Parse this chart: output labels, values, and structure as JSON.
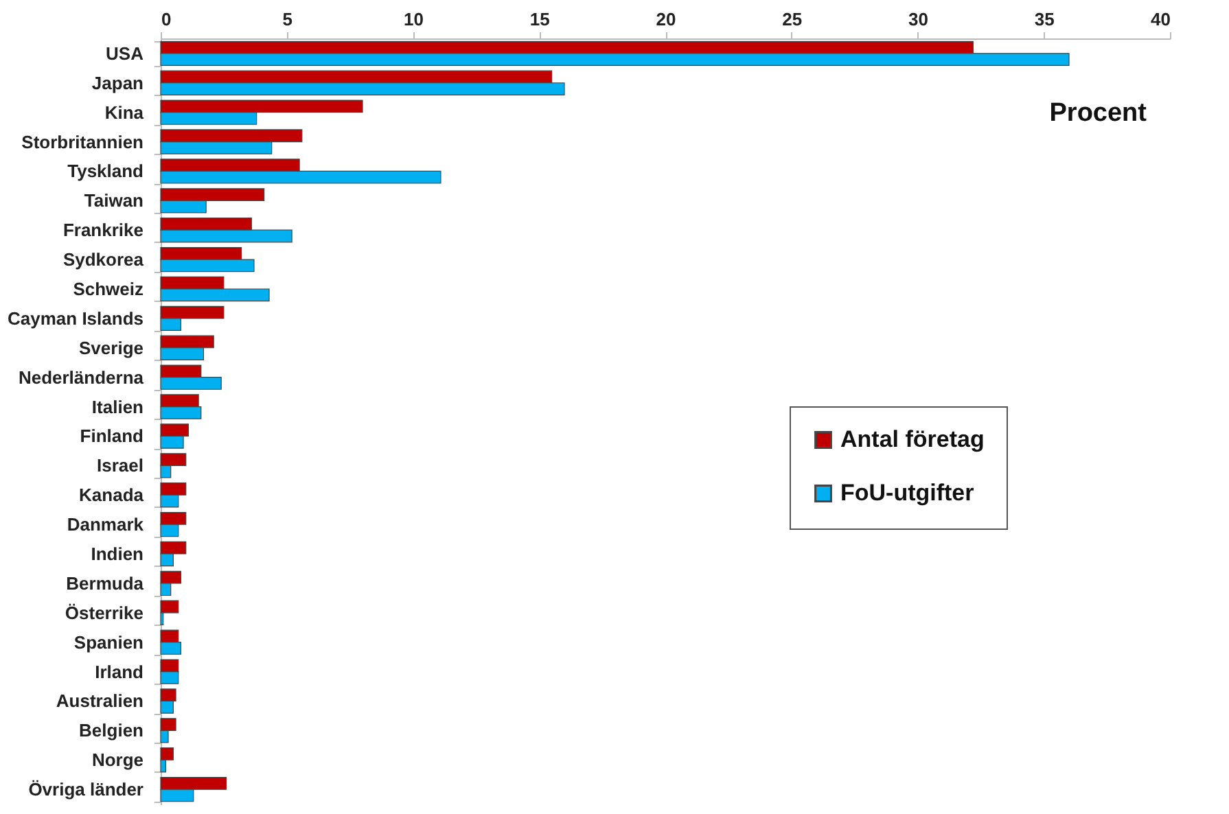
{
  "chart_data": {
    "type": "bar",
    "orientation": "horizontal",
    "categories": [
      "USA",
      "Japan",
      "Kina",
      "Storbritannien",
      "Tyskland",
      "Taiwan",
      "Frankrike",
      "Sydkorea",
      "Schweiz",
      "Cayman Islands",
      "Sverige",
      "Nederländerna",
      "Italien",
      "Finland",
      "Israel",
      "Kanada",
      "Danmark",
      "Indien",
      "Bermuda",
      "Österrike",
      "Spanien",
      "Irland",
      "Australien",
      "Belgien",
      "Norge",
      "Övriga länder"
    ],
    "series": [
      {
        "name": "Antal företag",
        "color": "#c00000",
        "values": [
          32.2,
          15.5,
          8.0,
          5.6,
          5.5,
          4.1,
          3.6,
          3.2,
          2.5,
          2.5,
          2.1,
          1.6,
          1.5,
          1.1,
          1.0,
          1.0,
          1.0,
          1.0,
          0.8,
          0.7,
          0.7,
          0.7,
          0.6,
          0.6,
          0.5,
          2.6
        ]
      },
      {
        "name": "FoU-utgifter",
        "color": "#00b0f0",
        "values": [
          36.0,
          16.0,
          3.8,
          4.4,
          11.1,
          1.8,
          5.2,
          3.7,
          4.3,
          0.8,
          1.7,
          2.4,
          1.6,
          0.9,
          0.4,
          0.7,
          0.7,
          0.5,
          0.4,
          0.1,
          0.8,
          0.7,
          0.5,
          0.3,
          0.2,
          1.3
        ]
      }
    ],
    "xlim": [
      0,
      40
    ],
    "xticks": [
      0,
      5,
      10,
      15,
      20,
      25,
      30,
      35,
      40
    ],
    "grid": false,
    "legend": "right",
    "annotations": [
      "Procent"
    ]
  }
}
